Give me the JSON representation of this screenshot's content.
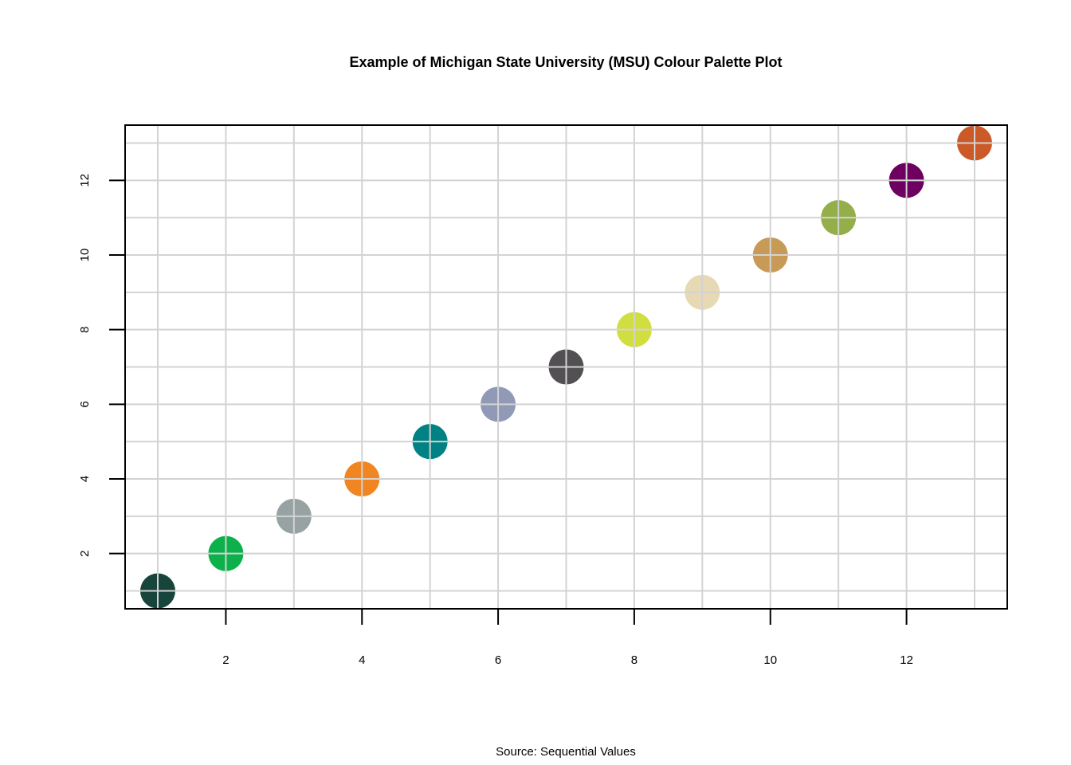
{
  "chart_data": {
    "type": "scatter",
    "title": "Example of Michigan State University (MSU) Colour Palette Plot",
    "caption": "Source: Sequential Values",
    "xlabel": "",
    "ylabel": "",
    "xlim": [
      0.52,
      13.48
    ],
    "ylim": [
      0.52,
      13.48
    ],
    "x_ticks": [
      2,
      4,
      6,
      8,
      10,
      12
    ],
    "y_ticks": [
      2,
      4,
      6,
      8,
      10,
      12
    ],
    "grid": true,
    "legend": "none",
    "points": [
      {
        "x": 1,
        "y": 1,
        "color": "#18453B"
      },
      {
        "x": 2,
        "y": 2,
        "color": "#0DB14B"
      },
      {
        "x": 3,
        "y": 3,
        "color": "#97A2A2"
      },
      {
        "x": 4,
        "y": 4,
        "color": "#F08521"
      },
      {
        "x": 5,
        "y": 5,
        "color": "#008183"
      },
      {
        "x": 6,
        "y": 6,
        "color": "#909AB7"
      },
      {
        "x": 7,
        "y": 7,
        "color": "#535054"
      },
      {
        "x": 8,
        "y": 8,
        "color": "#D1DE3F"
      },
      {
        "x": 9,
        "y": 9,
        "color": "#E8D9B5"
      },
      {
        "x": 10,
        "y": 10,
        "color": "#C89A58"
      },
      {
        "x": 11,
        "y": 11,
        "color": "#94AE4A"
      },
      {
        "x": 12,
        "y": 12,
        "color": "#6E005F"
      },
      {
        "x": 13,
        "y": 13,
        "color": "#CB5A28"
      }
    ]
  }
}
